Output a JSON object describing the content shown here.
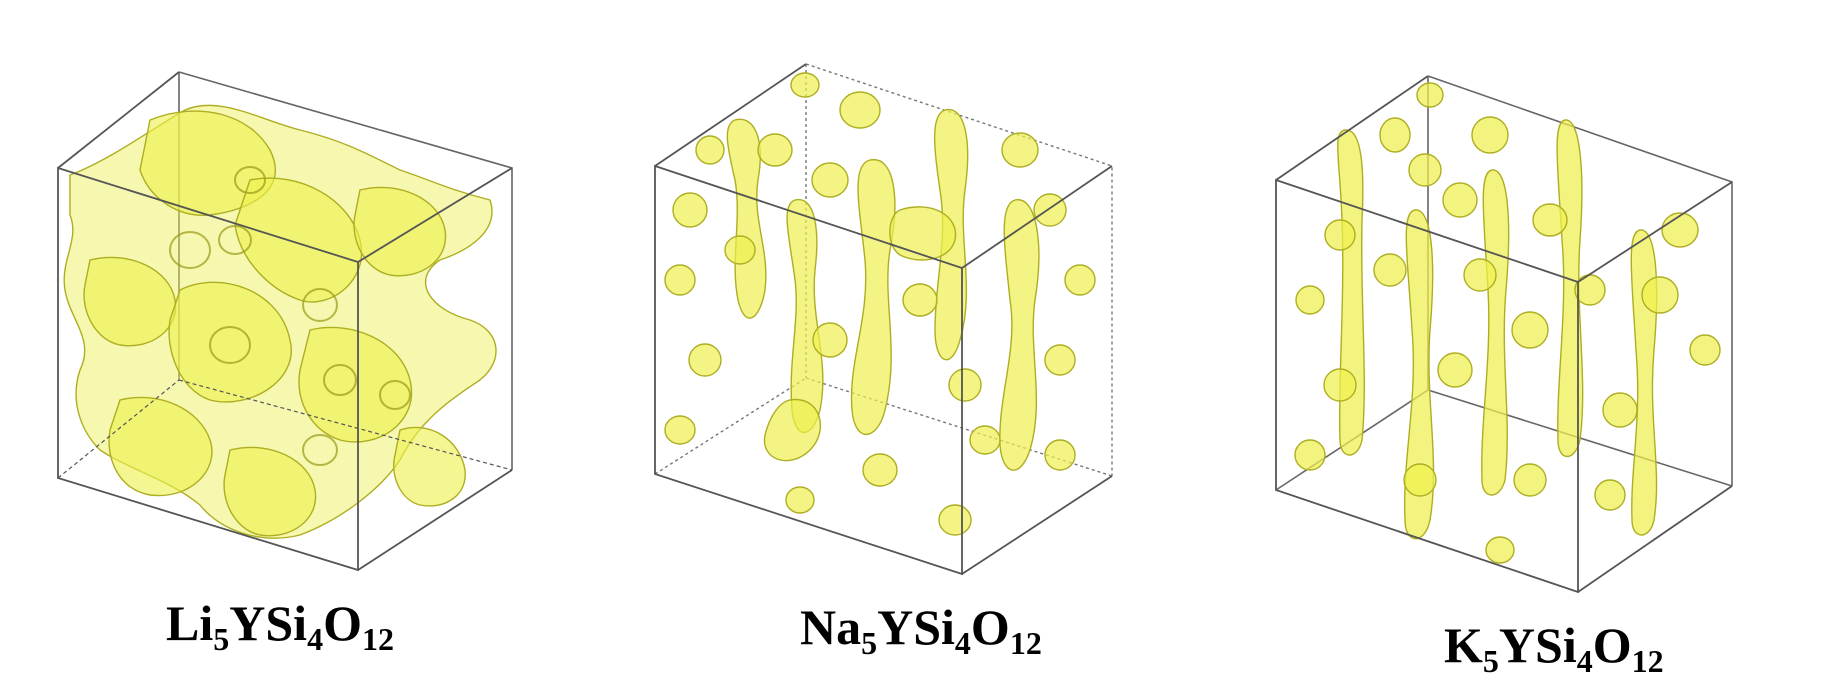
{
  "panels": [
    {
      "id": "li",
      "formula": [
        {
          "text": "Li",
          "sub": false
        },
        {
          "text": "5",
          "sub": true
        },
        {
          "text": "YSi",
          "sub": false
        },
        {
          "text": "4",
          "sub": true
        },
        {
          "text": "O",
          "sub": false
        },
        {
          "text": "12",
          "sub": true
        }
      ],
      "density": "network"
    },
    {
      "id": "na",
      "formula": [
        {
          "text": "Na",
          "sub": false
        },
        {
          "text": "5",
          "sub": true
        },
        {
          "text": "YSi",
          "sub": false
        },
        {
          "text": "4",
          "sub": true
        },
        {
          "text": "O",
          "sub": false
        },
        {
          "text": "12",
          "sub": true
        }
      ],
      "density": "channels-and-droplets"
    },
    {
      "id": "k",
      "formula": [
        {
          "text": "K",
          "sub": false
        },
        {
          "text": "5",
          "sub": true
        },
        {
          "text": "YSi",
          "sub": false
        },
        {
          "text": "4",
          "sub": true
        },
        {
          "text": "O",
          "sub": false
        },
        {
          "text": "12",
          "sub": true
        }
      ],
      "density": "vertical-channels"
    }
  ],
  "colors": {
    "isosurface": "#f1f35a",
    "isosurface_edge": "#a9a81e",
    "box_edge": "#555555",
    "text": "#000000",
    "background": "#ffffff"
  }
}
